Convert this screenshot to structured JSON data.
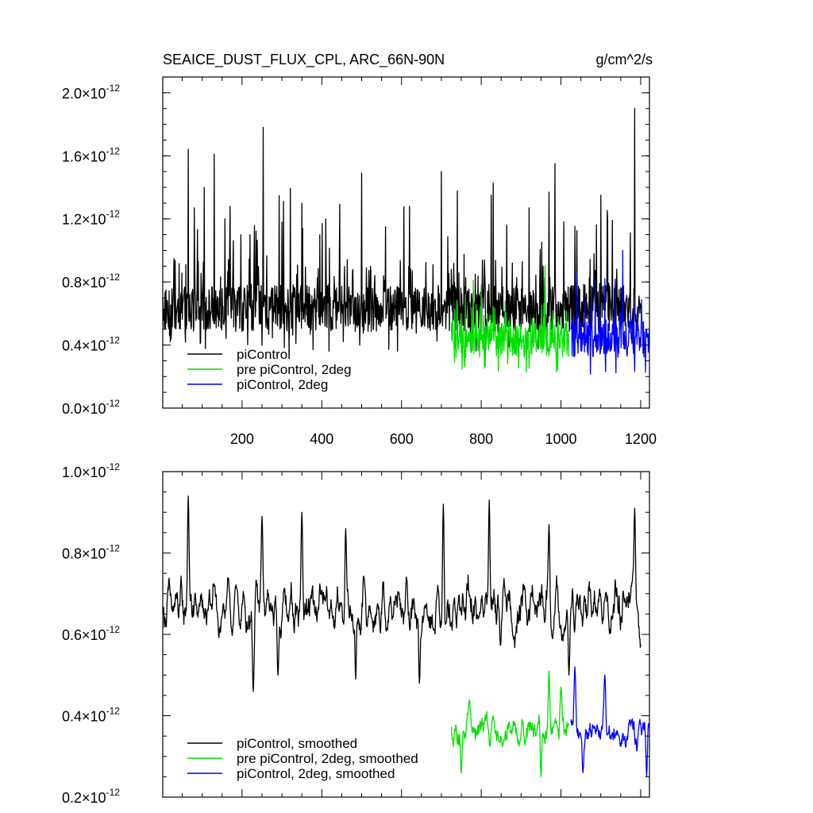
{
  "chart_data": [
    {
      "type": "line",
      "title": "SEAICE_DUST_FLUX_CPL, ARC_66N-90N",
      "units": "g/cm^2/s",
      "xlim": [
        1,
        1222
      ],
      "xticks": [
        200,
        400,
        600,
        800,
        1000,
        1200
      ],
      "xtick_labels": [
        "200",
        "400",
        "600",
        "800",
        "1000",
        "1200"
      ],
      "ylim": [
        0.0,
        2.1
      ],
      "yticks": [
        0.0,
        0.4,
        0.8,
        1.2,
        1.6,
        2.0
      ],
      "ytick_mantissas": [
        "0.0",
        "0.4",
        "0.8",
        "1.2",
        "1.6",
        "2.0"
      ],
      "ytick_exponent": "-12",
      "ytick_times": "×10",
      "legend_position": "bottom-left",
      "series": [
        {
          "name": "piControl",
          "color": "#000000",
          "x_start": 1,
          "x_end": 1200,
          "baseline": 0.62,
          "noise": 0.15,
          "min": 0.33,
          "max": 1.9,
          "spikes": [
            [
              65,
              1.64
            ],
            [
              80,
              1.27
            ],
            [
              105,
              1.4
            ],
            [
              130,
              1.61
            ],
            [
              157,
              1.2
            ],
            [
              170,
              1.28
            ],
            [
              220,
              1.1
            ],
            [
              253,
              1.78
            ],
            [
              300,
              1.18
            ],
            [
              350,
              1.3
            ],
            [
              410,
              1.2
            ],
            [
              500,
              1.49
            ],
            [
              560,
              1.15
            ],
            [
              620,
              1.28
            ],
            [
              700,
              1.5
            ],
            [
              825,
              1.35
            ],
            [
              920,
              1.27
            ],
            [
              970,
              1.37
            ],
            [
              985,
              1.55
            ],
            [
              1100,
              1.35
            ],
            [
              1185,
              1.9
            ]
          ]
        },
        {
          "name": "pre piControl, 2deg",
          "color": "#00e000",
          "x_start": 725,
          "x_end": 1020,
          "baseline": 0.42,
          "noise": 0.11,
          "min": 0.17,
          "max": 0.91,
          "spikes": [
            [
              760,
              0.72
            ],
            [
              800,
              0.78
            ],
            [
              860,
              0.68
            ],
            [
              960,
              0.9
            ]
          ]
        },
        {
          "name": "piControl, 2deg",
          "color": "#0000ff",
          "x_start": 1025,
          "x_end": 1222,
          "baseline": 0.43,
          "noise": 0.12,
          "min": 0.15,
          "max": 1.0,
          "spikes": [
            [
              1040,
              0.86
            ],
            [
              1110,
              0.82
            ],
            [
              1155,
              1.0
            ]
          ]
        }
      ]
    },
    {
      "type": "line",
      "xlim": [
        1,
        1222
      ],
      "xticks": [
        200,
        400,
        600,
        800,
        1000,
        1200
      ],
      "ylim": [
        0.2,
        1.0
      ],
      "yticks": [
        0.2,
        0.4,
        0.6,
        0.8,
        1.0
      ],
      "ytick_mantissas": [
        "0.2",
        "0.4",
        "0.6",
        "0.8",
        "1.0"
      ],
      "ytick_exponent": "-12",
      "ytick_times": "×10",
      "legend_position": "bottom-left",
      "series": [
        {
          "name": "piControl, smoothed",
          "color": "#000000",
          "x_start": 1,
          "x_end": 1200,
          "baseline": 0.66,
          "noise": 0.09,
          "min": 0.46,
          "max": 0.94,
          "peaks": [
            [
              65,
              0.94
            ],
            [
              250,
              0.89
            ],
            [
              350,
              0.9
            ],
            [
              460,
              0.86
            ],
            [
              705,
              0.92
            ],
            [
              820,
              0.93
            ],
            [
              970,
              0.87
            ],
            [
              1185,
              0.91
            ]
          ],
          "dips": [
            [
              228,
              0.46
            ],
            [
              290,
              0.5
            ],
            [
              485,
              0.49
            ],
            [
              645,
              0.48
            ],
            [
              1020,
              0.5
            ]
          ]
        },
        {
          "name": "pre piControl, 2deg, smoothed",
          "color": "#00e000",
          "x_start": 725,
          "x_end": 1020,
          "baseline": 0.37,
          "noise": 0.06,
          "min": 0.25,
          "max": 0.52,
          "peaks": [
            [
              970,
              0.51
            ],
            [
              1000,
              0.47
            ]
          ],
          "dips": [
            [
              750,
              0.26
            ],
            [
              950,
              0.25
            ]
          ]
        },
        {
          "name": "piControl, 2deg, smoothed",
          "color": "#0000ff",
          "x_start": 1025,
          "x_end": 1222,
          "baseline": 0.37,
          "noise": 0.06,
          "min": 0.25,
          "max": 0.53,
          "peaks": [
            [
              1035,
              0.52
            ],
            [
              1110,
              0.5
            ]
          ],
          "dips": [
            [
              1055,
              0.26
            ],
            [
              1215,
              0.25
            ]
          ]
        }
      ]
    }
  ]
}
